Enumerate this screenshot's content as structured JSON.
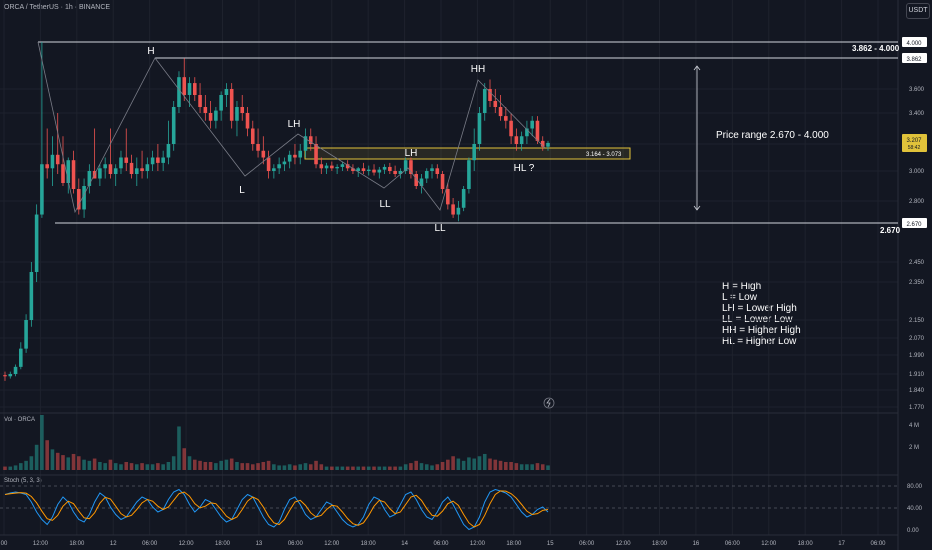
{
  "header": {
    "symbol_line": "ORCA / TetherUS · 1h · BINANCE",
    "currency": "USDT"
  },
  "colors": {
    "background": "#131722",
    "up": "#26a69a",
    "down": "#ef5350",
    "grid": "#1e222d",
    "axis_text": "#b2b5be",
    "white_line": "#d1d4dc",
    "zone_yellow": "#e0c23a",
    "stoch_k": "#2196f3",
    "stoch_d": "#ff9800"
  },
  "main_pane": {
    "price_ticks": [
      "4.000",
      "3.862",
      "3.600",
      "3.400",
      "3.200",
      "3.000",
      "2.800",
      "2.670",
      "2.450",
      "2.350",
      "2.150",
      "2.070",
      "1.990",
      "1.910",
      "1.840",
      "1.770"
    ],
    "current_price_label": "3.207",
    "current_price_sublabel": "58:42",
    "time_labels": [
      "00",
      "12:00",
      "18:00",
      "12",
      "06:00",
      "12:00",
      "18:00",
      "13",
      "06:00",
      "12:00",
      "18:00",
      "14",
      "06:00",
      "12:00",
      "18:00",
      "15",
      "06:00",
      "12:00",
      "18:00",
      "16",
      "06:00",
      "12:00",
      "18:00",
      "17",
      "06:00"
    ],
    "level_labels": {
      "top_range": "3.862 - 4.000",
      "bottom_level": "2.670",
      "zone_range": "3.164  - 3.073"
    },
    "annotations": {
      "h": "H",
      "l": "L",
      "lh1": "LH",
      "lh2": "LH",
      "ll1": "LL",
      "ll2": "LL",
      "hh": "HH",
      "hl": "HL ?",
      "price_range": "Price range 2.670 - 4.000"
    },
    "legend": [
      "H = High",
      "L = Low",
      "LH = Lower High",
      "LL = Lower Low",
      "HH = Higher High",
      "HL = Higher Low"
    ]
  },
  "volume_pane": {
    "title": "Vol · ORCA",
    "ticks": [
      "4 M",
      "2 M"
    ]
  },
  "stoch_pane": {
    "title": "Stoch (5, 3, 3)",
    "ticks": [
      "80.00",
      "40.00",
      "0.00"
    ],
    "current_k": "40",
    "current_d": "37"
  },
  "chart_data": {
    "type": "candlestick",
    "ylim": [
      1.77,
      4.0
    ],
    "levels": [
      4.0,
      3.862,
      2.67
    ],
    "zone": [
      3.073,
      3.164
    ],
    "candles": [
      [
        1.905,
        1.92,
        1.88,
        1.9
      ],
      [
        1.9,
        1.92,
        1.89,
        1.91
      ],
      [
        1.91,
        1.95,
        1.9,
        1.94
      ],
      [
        1.94,
        2.05,
        1.93,
        2.02
      ],
      [
        2.02,
        2.18,
        2.0,
        2.15
      ],
      [
        2.15,
        2.45,
        2.12,
        2.4
      ],
      [
        2.4,
        2.78,
        2.35,
        2.72
      ],
      [
        2.72,
        4.0,
        2.7,
        3.05
      ],
      [
        3.05,
        3.3,
        2.95,
        3.02
      ],
      [
        3.02,
        3.25,
        2.9,
        3.12
      ],
      [
        3.12,
        3.4,
        2.98,
        3.05
      ],
      [
        3.05,
        3.25,
        2.9,
        2.92
      ],
      [
        2.92,
        3.1,
        2.85,
        3.08
      ],
      [
        3.08,
        3.15,
        2.85,
        2.88
      ],
      [
        2.88,
        2.95,
        2.72,
        2.75
      ],
      [
        2.75,
        2.95,
        2.7,
        2.9
      ],
      [
        2.9,
        3.05,
        2.85,
        3.0
      ],
      [
        3.0,
        3.3,
        2.95,
        2.95
      ],
      [
        2.95,
        3.05,
        2.9,
        3.02
      ],
      [
        3.02,
        3.1,
        2.95,
        3.05
      ],
      [
        3.05,
        3.3,
        2.95,
        2.98
      ],
      [
        2.98,
        3.05,
        2.9,
        3.02
      ],
      [
        3.02,
        3.15,
        2.98,
        3.1
      ],
      [
        3.1,
        3.3,
        3.0,
        3.06
      ],
      [
        3.06,
        3.12,
        2.95,
        2.98
      ],
      [
        2.98,
        3.1,
        2.9,
        3.02
      ],
      [
        3.02,
        3.15,
        2.95,
        3.0
      ],
      [
        3.0,
        3.1,
        2.95,
        3.05
      ],
      [
        3.05,
        3.15,
        3.0,
        3.1
      ],
      [
        3.1,
        3.2,
        3.0,
        3.06
      ],
      [
        3.06,
        3.15,
        3.0,
        3.1
      ],
      [
        3.1,
        3.35,
        3.05,
        3.2
      ],
      [
        3.2,
        3.5,
        3.15,
        3.45
      ],
      [
        3.45,
        3.75,
        3.4,
        3.7
      ],
      [
        3.7,
        3.86,
        3.5,
        3.55
      ],
      [
        3.55,
        3.7,
        3.45,
        3.65
      ],
      [
        3.65,
        3.7,
        3.5,
        3.55
      ],
      [
        3.55,
        3.65,
        3.4,
        3.45
      ],
      [
        3.45,
        3.55,
        3.35,
        3.4
      ],
      [
        3.4,
        3.5,
        3.3,
        3.35
      ],
      [
        3.35,
        3.45,
        3.3,
        3.42
      ],
      [
        3.42,
        3.58,
        3.35,
        3.55
      ],
      [
        3.55,
        3.65,
        3.45,
        3.6
      ],
      [
        3.6,
        3.65,
        3.3,
        3.35
      ],
      [
        3.35,
        3.5,
        3.25,
        3.45
      ],
      [
        3.45,
        3.55,
        3.35,
        3.4
      ],
      [
        3.4,
        3.45,
        3.25,
        3.3
      ],
      [
        3.3,
        3.35,
        3.15,
        3.2
      ],
      [
        3.2,
        3.3,
        3.1,
        3.15
      ],
      [
        3.15,
        3.25,
        3.05,
        3.1
      ],
      [
        3.1,
        3.15,
        2.95,
        3.0
      ],
      [
        3.0,
        3.05,
        2.95,
        3.02
      ],
      [
        3.02,
        3.1,
        2.98,
        3.05
      ],
      [
        3.05,
        3.1,
        3.0,
        3.07
      ],
      [
        3.07,
        3.15,
        3.02,
        3.12
      ],
      [
        3.12,
        3.2,
        3.05,
        3.1
      ],
      [
        3.1,
        3.2,
        3.05,
        3.15
      ],
      [
        3.15,
        3.3,
        3.1,
        3.25
      ],
      [
        3.25,
        3.3,
        3.15,
        3.2
      ],
      [
        3.2,
        3.25,
        3.02,
        3.05
      ],
      [
        3.05,
        3.1,
        2.98,
        3.02
      ],
      [
        3.02,
        3.06,
        2.98,
        3.04
      ],
      [
        3.04,
        3.07,
        3.0,
        3.02
      ],
      [
        3.02,
        3.05,
        2.98,
        3.03
      ],
      [
        3.03,
        3.07,
        3.0,
        3.05
      ],
      [
        3.05,
        3.08,
        3.0,
        3.02
      ],
      [
        3.02,
        3.05,
        2.98,
        3.0
      ],
      [
        3.0,
        3.03,
        2.96,
        3.02
      ],
      [
        3.02,
        3.06,
        2.98,
        3.0
      ],
      [
        3.0,
        3.04,
        2.97,
        3.01
      ],
      [
        3.01,
        3.05,
        2.97,
        2.99
      ],
      [
        2.99,
        3.03,
        2.95,
        3.01
      ],
      [
        3.01,
        3.05,
        2.98,
        3.03
      ],
      [
        3.03,
        3.06,
        2.98,
        3.0
      ],
      [
        3.0,
        3.04,
        2.96,
        2.98
      ],
      [
        2.98,
        3.02,
        2.95,
        3.0
      ],
      [
        3.0,
        3.1,
        2.98,
        3.08
      ],
      [
        3.08,
        3.1,
        2.95,
        2.98
      ],
      [
        2.98,
        3.0,
        2.88,
        2.9
      ],
      [
        2.9,
        2.98,
        2.85,
        2.95
      ],
      [
        2.95,
        3.02,
        2.92,
        3.0
      ],
      [
        3.0,
        3.05,
        2.95,
        3.02
      ],
      [
        3.02,
        3.05,
        2.95,
        2.98
      ],
      [
        2.98,
        3.0,
        2.85,
        2.88
      ],
      [
        2.88,
        2.92,
        2.75,
        2.78
      ],
      [
        2.78,
        2.82,
        2.7,
        2.72
      ],
      [
        2.72,
        2.8,
        2.68,
        2.76
      ],
      [
        2.76,
        2.9,
        2.74,
        2.88
      ],
      [
        2.88,
        3.1,
        2.85,
        3.08
      ],
      [
        3.08,
        3.3,
        3.0,
        3.2
      ],
      [
        3.2,
        3.45,
        3.15,
        3.4
      ],
      [
        3.4,
        3.65,
        3.35,
        3.6
      ],
      [
        3.6,
        3.68,
        3.45,
        3.5
      ],
      [
        3.5,
        3.6,
        3.4,
        3.45
      ],
      [
        3.45,
        3.55,
        3.35,
        3.38
      ],
      [
        3.38,
        3.45,
        3.3,
        3.35
      ],
      [
        3.35,
        3.4,
        3.2,
        3.25
      ],
      [
        3.25,
        3.3,
        3.15,
        3.2
      ],
      [
        3.2,
        3.28,
        3.15,
        3.25
      ],
      [
        3.25,
        3.35,
        3.2,
        3.3
      ],
      [
        3.3,
        3.38,
        3.25,
        3.35
      ],
      [
        3.35,
        3.38,
        3.2,
        3.22
      ],
      [
        3.22,
        3.25,
        3.15,
        3.18
      ],
      [
        3.18,
        3.22,
        3.15,
        3.207
      ]
    ],
    "volume": [
      0.3,
      0.3,
      0.4,
      0.6,
      0.8,
      1.2,
      2.2,
      4.8,
      2.6,
      1.8,
      1.5,
      1.3,
      1.1,
      1.4,
      1.2,
      0.9,
      0.8,
      1.0,
      0.7,
      0.6,
      0.9,
      0.6,
      0.5,
      0.7,
      0.6,
      0.5,
      0.6,
      0.5,
      0.5,
      0.6,
      0.5,
      0.7,
      1.2,
      3.8,
      1.9,
      1.2,
      0.9,
      0.8,
      0.7,
      0.7,
      0.6,
      0.8,
      0.9,
      1.0,
      0.7,
      0.6,
      0.6,
      0.5,
      0.6,
      0.7,
      0.8,
      0.5,
      0.4,
      0.4,
      0.5,
      0.4,
      0.5,
      0.6,
      0.5,
      0.8,
      0.5,
      0.3,
      0.3,
      0.3,
      0.3,
      0.3,
      0.3,
      0.3,
      0.3,
      0.3,
      0.3,
      0.3,
      0.3,
      0.3,
      0.3,
      0.3,
      0.5,
      0.6,
      0.8,
      0.6,
      0.5,
      0.4,
      0.5,
      0.7,
      0.9,
      1.2,
      1.0,
      0.8,
      1.1,
      1.0,
      1.2,
      1.4,
      1.0,
      0.9,
      0.8,
      0.7,
      0.7,
      0.6,
      0.5,
      0.5,
      0.5,
      0.6,
      0.5,
      0.4
    ],
    "stoch_k": [
      75,
      78,
      80,
      78,
      75,
      60,
      40,
      25,
      15,
      30,
      55,
      70,
      60,
      40,
      25,
      20,
      35,
      60,
      78,
      70,
      50,
      35,
      25,
      30,
      45,
      60,
      70,
      65,
      50,
      40,
      45,
      65,
      80,
      85,
      75,
      55,
      40,
      50,
      65,
      60,
      45,
      30,
      20,
      25,
      45,
      65,
      75,
      70,
      50,
      30,
      15,
      10,
      20,
      45,
      65,
      70,
      55,
      35,
      25,
      30,
      45,
      60,
      55,
      40,
      25,
      15,
      10,
      15,
      30,
      55,
      70,
      65,
      45,
      30,
      35,
      55,
      75,
      80,
      65,
      45,
      30,
      25,
      40,
      60,
      70,
      55,
      35,
      15,
      5,
      10,
      30,
      60,
      80,
      85,
      82,
      78,
      70,
      55,
      40,
      30,
      35,
      45,
      50,
      40
    ]
  }
}
